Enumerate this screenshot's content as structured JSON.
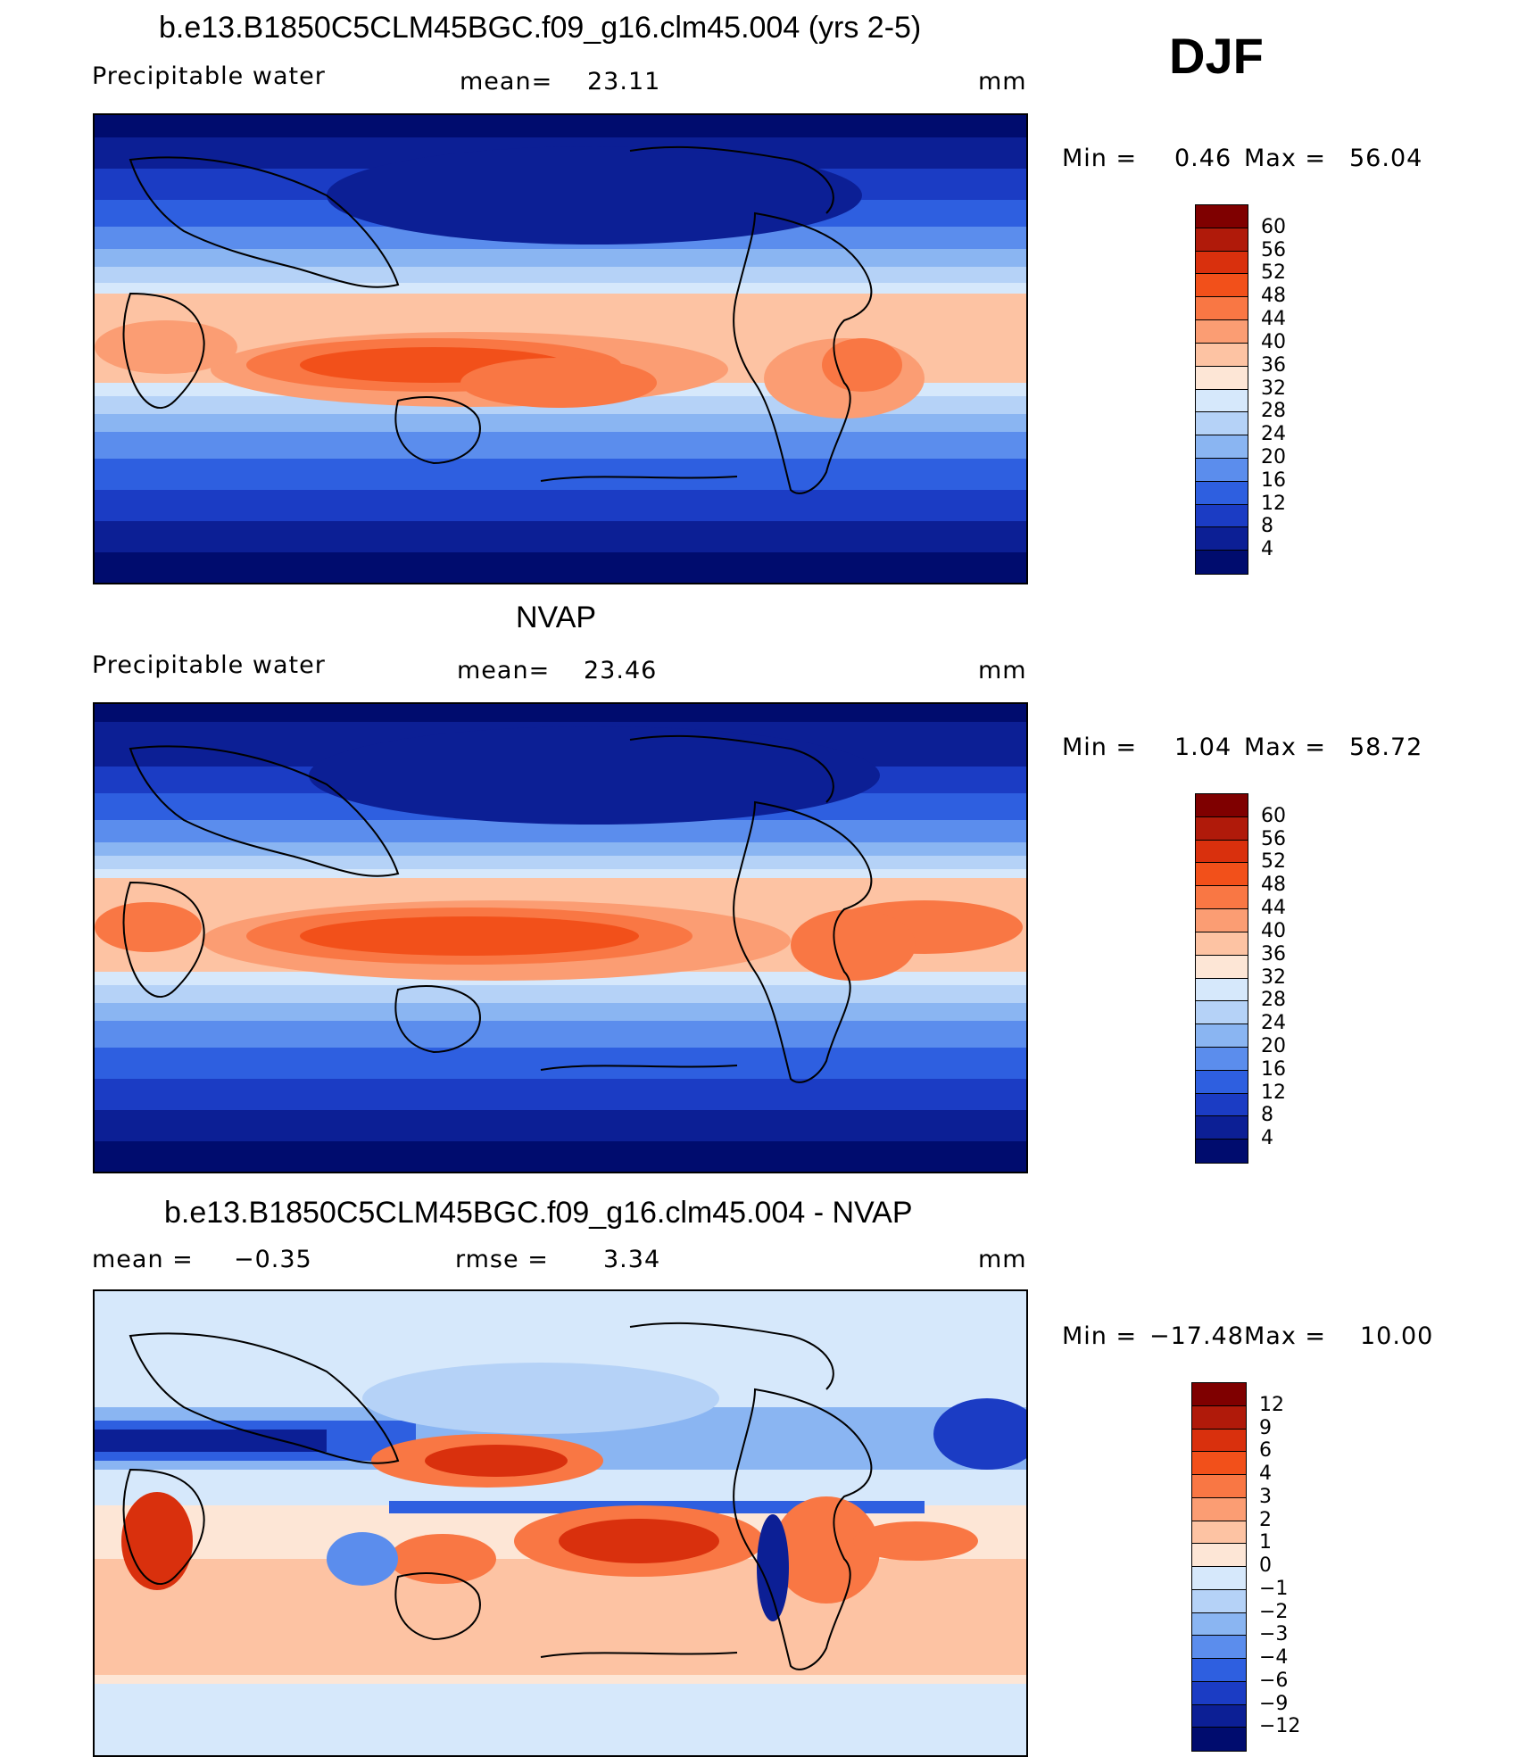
{
  "season": "DJF",
  "panels": [
    {
      "title": "b.e13.B1850C5CLM45BGC.f09_g16.clm45.004 (yrs 2-5)",
      "left_label": "Precipitable  water",
      "center_label": "mean=",
      "center_value": "23.11",
      "unit": "mm",
      "min_label": "Min  =",
      "min_value": "0.46",
      "max_label": "Max  =",
      "max_value": "56.04"
    },
    {
      "title": "NVAP",
      "left_label": "Precipitable  water",
      "center_label": "mean=",
      "center_value": "23.46",
      "unit": "mm",
      "min_label": "Min  =",
      "min_value": "1.04",
      "max_label": "Max  =",
      "max_value": "58.72"
    },
    {
      "title": "b.e13.B1850C5CLM45BGC.f09_g16.clm45.004 - NVAP",
      "left_label": "mean  =",
      "left_value": "−0.35",
      "center_label": "rmse  =",
      "center_value": "3.34",
      "unit": "mm",
      "min_label": "Min  =",
      "min_value": "−17.48",
      "max_label": "Max  =",
      "max_value": "10.00"
    }
  ],
  "colorbars": {
    "absolute": {
      "labels": [
        "60",
        "56",
        "52",
        "48",
        "44",
        "40",
        "36",
        "32",
        "28",
        "24",
        "20",
        "16",
        "12",
        "8",
        "4"
      ],
      "colors": [
        "#7f0000",
        "#b01a0a",
        "#d9300d",
        "#f2501a",
        "#f97744",
        "#fb9d73",
        "#fdc3a3",
        "#fde6d6",
        "#d6e8fb",
        "#b5d2f7",
        "#8ab5f2",
        "#5b8ded",
        "#2e5fe0",
        "#1b3cc4",
        "#0c1f95",
        "#000c6e"
      ]
    },
    "difference": {
      "labels": [
        "12",
        "9",
        "6",
        "4",
        "3",
        "2",
        "1",
        "0",
        "−1",
        "−2",
        "−3",
        "−4",
        "−6",
        "−9",
        "−12"
      ],
      "colors": [
        "#7f0000",
        "#b01a0a",
        "#d9300d",
        "#f2501a",
        "#f97744",
        "#fb9d73",
        "#fdc3a3",
        "#fde6d6",
        "#d6e8fb",
        "#b5d2f7",
        "#8ab5f2",
        "#5b8ded",
        "#2e5fe0",
        "#1b3cc4",
        "#0c1f95",
        "#000c6e"
      ]
    }
  }
}
